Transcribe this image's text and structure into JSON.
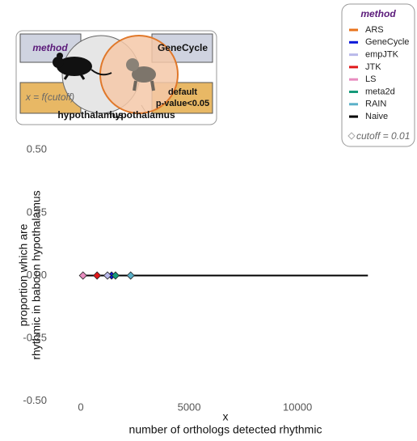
{
  "diagram": {
    "method_label": "method",
    "method_value": "GeneCycle",
    "x_label": "x = f(cutoff)",
    "threshold": [
      "default",
      "p-value<0.05"
    ],
    "tissues": [
      "hypothalamus",
      "hypothalamus"
    ]
  },
  "chart_data": {
    "type": "scatter",
    "ylabel": [
      "proportion which are",
      "rhythmic in baboon hypothalamus"
    ],
    "xlabel": [
      "x",
      "number of orthologs detected rhythmic"
    ],
    "xlim": [
      -560,
      13800
    ],
    "ylim": [
      -0.52,
      0.52
    ],
    "xticks": [
      0,
      5000,
      10000
    ],
    "yticks": [
      {
        "value": -0.5,
        "label": "-0.50"
      },
      -0.25,
      {
        "value": 0,
        "label": "0.00"
      },
      0.25,
      {
        "value": 0.5,
        "label": "0.50"
      }
    ],
    "legend_title": "method",
    "legend_position": "top-right",
    "annotation": "cutoff = 0.01",
    "series": [
      {
        "name": "ARS",
        "color": "#e8731c",
        "style": "diamond",
        "x": [],
        "values": []
      },
      {
        "name": "GeneCycle",
        "color": "#0a17d8",
        "style": "diamond",
        "x": [
          1420
        ],
        "values": [
          0
        ]
      },
      {
        "name": "empJTK",
        "color": "#b9b9ea",
        "style": "diamond",
        "x": [
          1230
        ],
        "values": [
          0
        ]
      },
      {
        "name": "JTK",
        "color": "#e0181a",
        "style": "diamond",
        "x": [
          750
        ],
        "values": [
          0
        ]
      },
      {
        "name": "LS",
        "color": "#e88cbf",
        "style": "diamond",
        "x": [
          100
        ],
        "values": [
          0
        ]
      },
      {
        "name": "meta2d",
        "color": "#169a7a",
        "style": "diamond",
        "x": [
          1600
        ],
        "values": [
          0
        ]
      },
      {
        "name": "RAIN",
        "color": "#5ab0c8",
        "style": "diamond",
        "x": [
          2300
        ],
        "values": [
          0
        ]
      },
      {
        "name": "Naive",
        "color": "#000000",
        "style": "line",
        "x": [
          0,
          13250
        ],
        "values": [
          0,
          0
        ]
      }
    ]
  }
}
